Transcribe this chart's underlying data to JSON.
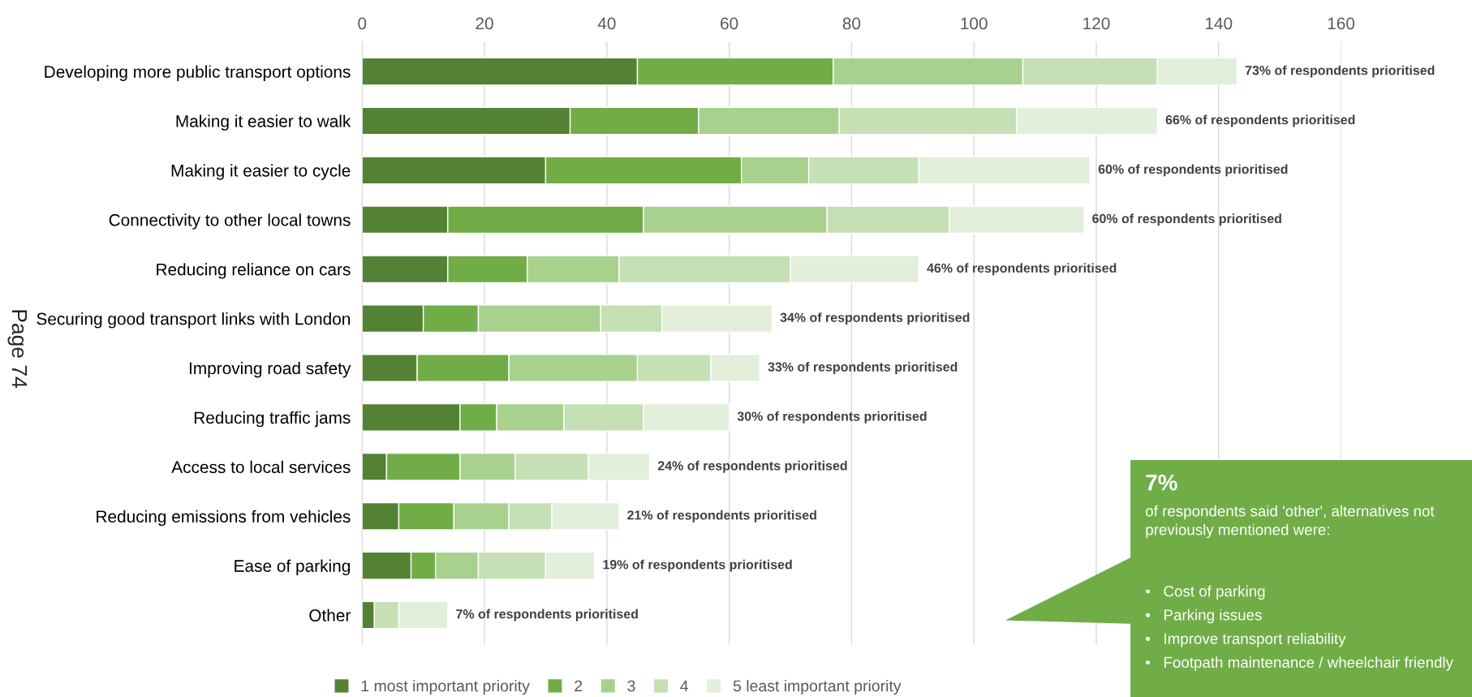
{
  "chart_data": {
    "type": "bar",
    "orientation": "horizontal",
    "stacked": true,
    "categories": [
      "Developing more public transport options",
      "Making it easier to walk",
      "Making it easier to cycle",
      "Connectivity to other local towns",
      "Reducing reliance on cars",
      "Securing good transport links with London",
      "Improving road safety",
      "Reducing traffic jams",
      "Access to local services",
      "Reducing emissions from vehicles",
      "Ease of parking",
      "Other"
    ],
    "series": [
      {
        "name": "1 most important priority",
        "color": "#548235",
        "values": [
          45,
          34,
          30,
          14,
          14,
          10,
          9,
          16,
          4,
          6,
          8,
          2
        ]
      },
      {
        "name": "2",
        "color": "#70ad47",
        "values": [
          32,
          21,
          32,
          32,
          13,
          9,
          15,
          6,
          12,
          9,
          4,
          0
        ]
      },
      {
        "name": "3",
        "color": "#a9d18e",
        "values": [
          31,
          23,
          11,
          30,
          15,
          20,
          21,
          11,
          9,
          9,
          7,
          0
        ]
      },
      {
        "name": "4",
        "color": "#c5e0b4",
        "values": [
          22,
          29,
          18,
          20,
          28,
          10,
          12,
          13,
          12,
          7,
          11,
          4
        ]
      },
      {
        "name": "5 least important priority",
        "color": "#e2efda",
        "values": [
          13,
          23,
          28,
          22,
          21,
          18,
          8,
          14,
          10,
          11,
          8,
          8
        ]
      }
    ],
    "xlim": [
      0,
      160
    ],
    "xticks": [
      0,
      20,
      40,
      60,
      80,
      100,
      120,
      140,
      160
    ],
    "grid": "x",
    "legend": "bottom",
    "annotations": [
      {
        "text": "73% of respondents prioritised",
        "x": 143,
        "y": "Developing more public transport options"
      },
      {
        "text": "66% of respondents prioritised",
        "x": 130,
        "y": "Making it easier to walk"
      },
      {
        "text": "60% of respondents prioritised",
        "x": 119,
        "y": "Making it easier to cycle"
      },
      {
        "text": "60% of respondents prioritised",
        "x": 118,
        "y": "Connectivity to other local towns"
      },
      {
        "text": "46% of respondents prioritised",
        "x": 91,
        "y": "Reducing reliance on cars"
      },
      {
        "text": "34% of respondents prioritised",
        "x": 67,
        "y": "Securing good transport links with London"
      },
      {
        "text": "33% of respondents prioritised",
        "x": 65,
        "y": "Improving road safety"
      },
      {
        "text": "30% of respondents prioritised",
        "x": 60,
        "y": "Reducing traffic jams"
      },
      {
        "text": "24% of respondents prioritised",
        "x": 47,
        "y": "Access to local services"
      },
      {
        "text": "21% of respondents prioritised",
        "x": 42,
        "y": "Reducing emissions from vehicles"
      },
      {
        "text": "19% of respondents prioritised",
        "x": 38,
        "y": "Ease of parking"
      },
      {
        "text": "7% of respondents prioritised",
        "x": 14,
        "y": "Other"
      },
      "Page 74",
      "7%",
      "of respondents said 'other', alternatives not previously mentioned were:",
      "•   Cost of parking",
      "•   Parking issues",
      "•   Improve transport reliability",
      "•   Footpath maintenance / wheelchair friendly"
    ]
  }
}
